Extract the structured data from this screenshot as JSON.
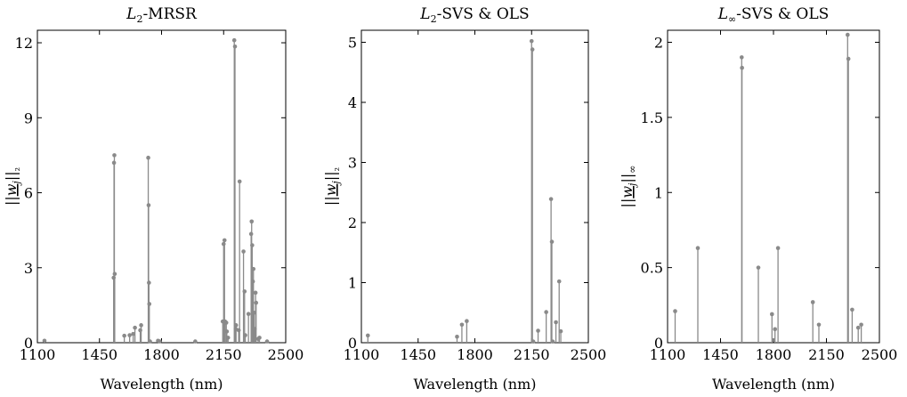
{
  "chart_data": [
    {
      "type": "stem",
      "title": "L₂-MRSR",
      "title_parts": {
        "base": "L",
        "sub": "2",
        "rest": "-MRSR"
      },
      "xlabel": "Wavelength (nm)",
      "ylabel": "||w_j||₂",
      "xlim": [
        1100,
        2500
      ],
      "ylim": [
        0,
        12.5
      ],
      "xticks": [
        "1100",
        "1450",
        "1800",
        "2150",
        "2500"
      ],
      "yticks": [
        "0",
        "3",
        "6",
        "9",
        "12"
      ],
      "x": [
        1140,
        1530,
        1532,
        1534,
        1536,
        1590,
        1620,
        1640,
        1650,
        1680,
        1685,
        1725,
        1727,
        1729,
        1731,
        1735,
        1780,
        1790,
        1990,
        2145,
        2150,
        2155,
        2158,
        2165,
        2168,
        2175,
        2210,
        2214,
        2218,
        2220,
        2235,
        2240,
        2262,
        2268,
        2272,
        2290,
        2305,
        2308,
        2311,
        2315,
        2318,
        2321,
        2325,
        2330,
        2333,
        2345,
        2352,
        2395
      ],
      "y": [
        0.08,
        2.6,
        7.2,
        7.5,
        2.75,
        0.28,
        0.3,
        0.35,
        0.6,
        0.5,
        0.7,
        7.4,
        5.5,
        2.4,
        1.55,
        0.05,
        0.08,
        0.05,
        0.05,
        0.85,
        3.95,
        4.1,
        0.85,
        0.8,
        0.45,
        0.2,
        12.1,
        11.85,
        0.55,
        0.7,
        0.5,
        6.45,
        3.65,
        2.05,
        0.3,
        1.15,
        4.35,
        4.85,
        3.9,
        2.45,
        2.95,
        1.2,
        0.55,
        2.0,
        1.6,
        0.15,
        0.2,
        0.05
      ]
    },
    {
      "type": "stem",
      "title": "L₂-SVS & OLS",
      "title_parts": {
        "base": "L",
        "sub": "2",
        "rest": "-SVS & OLS"
      },
      "xlabel": "Wavelength (nm)",
      "ylabel": "||w_j||₂",
      "xlim": [
        1100,
        2500
      ],
      "ylim": [
        0,
        5.2
      ],
      "xticks": [
        "1100",
        "1450",
        "1800",
        "2150",
        "2500"
      ],
      "yticks": [
        "0",
        "1",
        "2",
        "3",
        "4",
        "5"
      ],
      "x": [
        1140,
        1690,
        1720,
        1750,
        2150,
        2155,
        2160,
        2190,
        2240,
        2270,
        2275,
        2280,
        2300,
        2320,
        2330
      ],
      "y": [
        0.12,
        0.1,
        0.3,
        0.36,
        5.02,
        4.88,
        0.02,
        0.2,
        0.51,
        2.39,
        1.68,
        0.02,
        0.34,
        1.02,
        0.19
      ]
    },
    {
      "type": "stem",
      "title": "L∞-SVS & OLS",
      "title_parts": {
        "base": "L",
        "sub": "∞",
        "rest": "-SVS & OLS"
      },
      "xlabel": "Wavelength (nm)",
      "ylabel": "||w_j||∞",
      "xlim": [
        1100,
        2500
      ],
      "ylim": [
        0,
        2.08
      ],
      "xticks": [
        "1100",
        "1450",
        "1800",
        "2150",
        "2500"
      ],
      "yticks": [
        "0",
        "0.5",
        "1",
        "1.5",
        "2"
      ],
      "x": [
        1150,
        1300,
        1590,
        1592,
        1700,
        1790,
        1810,
        1830,
        2060,
        2100,
        2290,
        2295,
        2320,
        2360,
        2380
      ],
      "y": [
        0.21,
        0.63,
        1.9,
        1.83,
        0.5,
        0.19,
        0.09,
        0.63,
        0.27,
        0.12,
        2.05,
        1.89,
        0.22,
        0.1,
        0.12
      ]
    }
  ]
}
